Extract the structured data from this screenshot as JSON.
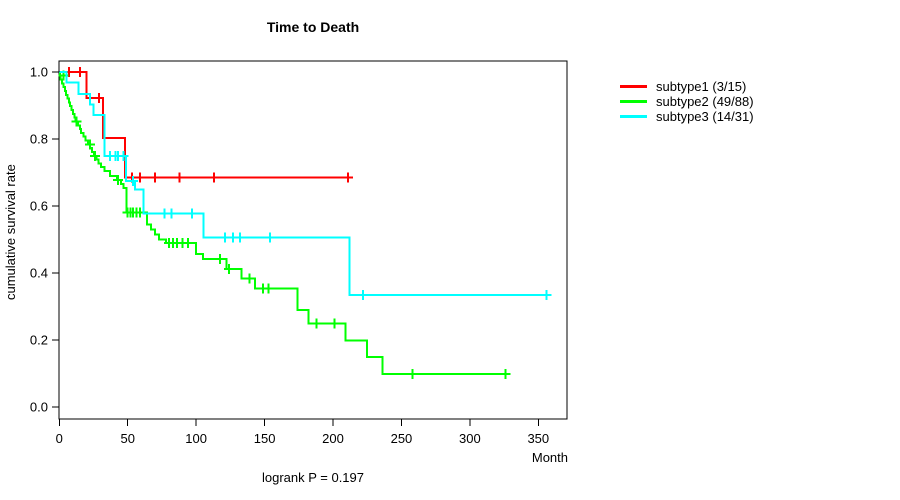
{
  "title": "Time to Death",
  "footnote": "logrank P = 0.197",
  "axis": {
    "x_label": "Month",
    "y_label": "cumulative survival rate"
  },
  "legend": {
    "items": [
      {
        "label": "subtype1 (3/15)",
        "color": "#ff0000"
      },
      {
        "label": "subtype2 (49/88)",
        "color": "#00ff00"
      },
      {
        "label": "subtype3 (14/31)",
        "color": "#00ffff"
      }
    ]
  },
  "chart_data": {
    "type": "line",
    "variant": "kaplan-meier-step",
    "title": "Time to Death",
    "xlabel": "Month",
    "ylabel": "cumulative survival rate",
    "annotation": "logrank P = 0.197",
    "xlim": [
      0,
      371
    ],
    "ylim": [
      0,
      1.0
    ],
    "x_ticks": [
      0,
      50,
      100,
      150,
      200,
      250,
      300,
      350
    ],
    "y_ticks": [
      1.0,
      0.8,
      0.6,
      0.4,
      0.2,
      0.0
    ],
    "grid": false,
    "legend_position": "right-outside",
    "series": [
      {
        "name": "subtype1 (3/15)",
        "color": "#ff0000",
        "steps": [
          [
            0,
            1.0
          ],
          [
            20,
            0.923
          ],
          [
            32,
            0.803
          ],
          [
            48,
            0.685
          ]
        ],
        "end": 211,
        "censors": [
          [
            7,
            1.0
          ],
          [
            15,
            1.0
          ],
          [
            29,
            0.923
          ],
          [
            53,
            0.685
          ],
          [
            59,
            0.685
          ],
          [
            70,
            0.685
          ],
          [
            88,
            0.685
          ],
          [
            113,
            0.685
          ],
          [
            211,
            0.685
          ]
        ]
      },
      {
        "name": "subtype2 (49/88)",
        "color": "#00ff00",
        "steps": [
          [
            0,
            1.0
          ],
          [
            0.5,
            0.989
          ],
          [
            1,
            0.977
          ],
          [
            2,
            0.966
          ],
          [
            3,
            0.955
          ],
          [
            4,
            0.944
          ],
          [
            5,
            0.932
          ],
          [
            6,
            0.921
          ],
          [
            7,
            0.909
          ],
          [
            8,
            0.898
          ],
          [
            9,
            0.887
          ],
          [
            10,
            0.875
          ],
          [
            11,
            0.864
          ],
          [
            12,
            0.852
          ],
          [
            13.5,
            0.841
          ],
          [
            15,
            0.83
          ],
          [
            16,
            0.818
          ],
          [
            17.5,
            0.807
          ],
          [
            19,
            0.795
          ],
          [
            21,
            0.784
          ],
          [
            22.5,
            0.773
          ],
          [
            24,
            0.761
          ],
          [
            25.5,
            0.75
          ],
          [
            27,
            0.739
          ],
          [
            28.5,
            0.727
          ],
          [
            30.5,
            0.716
          ],
          [
            33,
            0.704
          ],
          [
            37,
            0.689
          ],
          [
            42,
            0.678
          ],
          [
            45,
            0.665
          ],
          [
            47,
            0.653
          ],
          [
            49,
            0.581
          ],
          [
            64,
            0.545
          ],
          [
            67,
            0.53
          ],
          [
            70,
            0.515
          ],
          [
            73,
            0.5
          ],
          [
            78,
            0.49
          ],
          [
            100,
            0.457
          ],
          [
            105,
            0.442
          ],
          [
            122,
            0.412
          ],
          [
            133,
            0.383
          ],
          [
            143,
            0.353
          ],
          [
            174,
            0.289
          ],
          [
            182,
            0.249
          ],
          [
            209,
            0.199
          ],
          [
            225,
            0.15
          ],
          [
            236,
            0.098
          ]
        ],
        "end": 326,
        "censors": [
          [
            3,
            0.99
          ],
          [
            12.7,
            0.852
          ],
          [
            22.4,
            0.784
          ],
          [
            26,
            0.75
          ],
          [
            43,
            0.678
          ],
          [
            50,
            0.581
          ],
          [
            52,
            0.581
          ],
          [
            54,
            0.581
          ],
          [
            56.5,
            0.581
          ],
          [
            59,
            0.581
          ],
          [
            80,
            0.49
          ],
          [
            83,
            0.49
          ],
          [
            86,
            0.49
          ],
          [
            90,
            0.49
          ],
          [
            94,
            0.49
          ],
          [
            117.5,
            0.442
          ],
          [
            124,
            0.412
          ],
          [
            139,
            0.383
          ],
          [
            149,
            0.353
          ],
          [
            153,
            0.353
          ],
          [
            188,
            0.249
          ],
          [
            201,
            0.249
          ],
          [
            258,
            0.098
          ],
          [
            326,
            0.098
          ]
        ]
      },
      {
        "name": "subtype3 (14/31)",
        "color": "#00ffff",
        "steps": [
          [
            0,
            1.0
          ],
          [
            5.4,
            0.968
          ],
          [
            14,
            0.935
          ],
          [
            22.4,
            0.903
          ],
          [
            25,
            0.871
          ],
          [
            33,
            0.749
          ],
          [
            48.6,
            0.674
          ],
          [
            55.3,
            0.65
          ],
          [
            61.4,
            0.578
          ],
          [
            105.3,
            0.506
          ],
          [
            212,
            0.335
          ]
        ],
        "end": 356,
        "censors": [
          [
            37,
            0.749
          ],
          [
            41,
            0.749
          ],
          [
            43,
            0.749
          ],
          [
            47,
            0.749
          ],
          [
            54,
            0.674
          ],
          [
            77,
            0.578
          ],
          [
            82,
            0.578
          ],
          [
            97,
            0.578
          ],
          [
            121,
            0.506
          ],
          [
            127,
            0.506
          ],
          [
            132,
            0.506
          ],
          [
            154,
            0.506
          ],
          [
            222,
            0.335
          ],
          [
            356,
            0.335
          ]
        ]
      }
    ]
  }
}
